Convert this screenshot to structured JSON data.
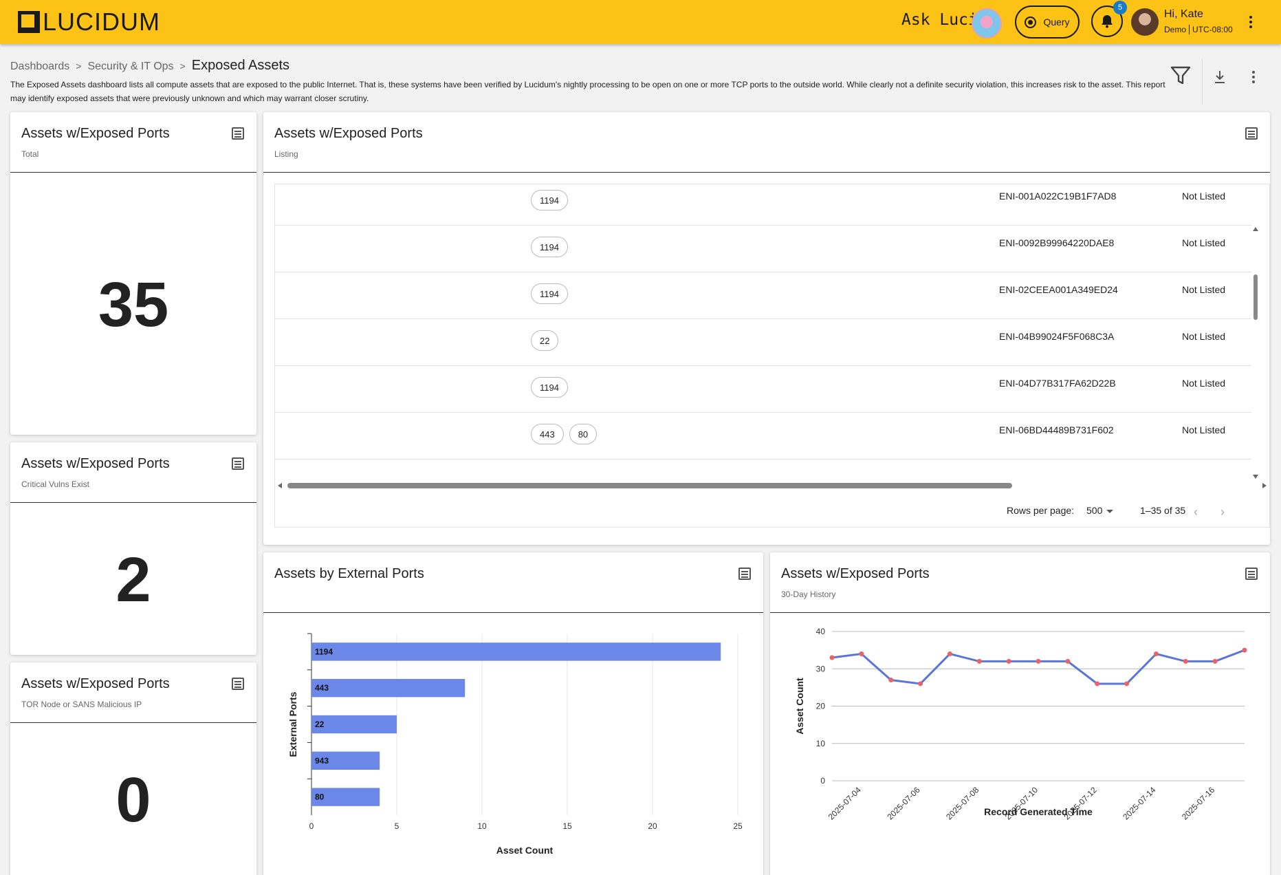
{
  "header": {
    "logo_text": "LUCIDUM",
    "ask_luci": "Ask Luci:",
    "query_label": "Query",
    "notification_count": "5",
    "user_greeting": "Hi, Kate",
    "user_org": "Demo",
    "user_tz": "UTC-08:00"
  },
  "breadcrumb": {
    "items": [
      "Dashboards",
      "Security & IT Ops"
    ],
    "separator": ">",
    "current": "Exposed Assets"
  },
  "description": "The Exposed Assets dashboard lists all compute assets that are exposed to the public Internet. That is, these systems have been verified by Lucidum's nightly processing to be open on one or more TCP ports to the outside world. While clearly not a definite security violation, this increases risk to the asset. This report may identify exposed assets that were previously unknown and which may warrant closer scrutiny.",
  "cards": {
    "total": {
      "title": "Assets w/Exposed Ports",
      "subtitle": "Total",
      "value": "35"
    },
    "critical": {
      "title": "Assets w/Exposed Ports",
      "subtitle": "Critical Vulns Exist",
      "value": "2"
    },
    "tor": {
      "title": "Assets w/Exposed Ports",
      "subtitle": "TOR Node or SANS Malicious IP",
      "value": "0"
    },
    "listing": {
      "title": "Assets w/Exposed Ports",
      "subtitle": "Listing"
    },
    "ext_ports": {
      "title": "Assets by External Ports",
      "subtitle": ""
    },
    "history": {
      "title": "Assets w/Exposed Ports",
      "subtitle": "30-Day History"
    }
  },
  "table": {
    "rows": [
      {
        "ports": [
          "1194"
        ],
        "eni": "ENI-001A022C19B1F7AD8",
        "status": "Not Listed"
      },
      {
        "ports": [
          "1194"
        ],
        "eni": "ENI-0092B99964220DAE8",
        "status": "Not Listed"
      },
      {
        "ports": [
          "1194"
        ],
        "eni": "ENI-02CEEA001A349ED24",
        "status": "Not Listed"
      },
      {
        "ports": [
          "22"
        ],
        "eni": "ENI-04B99024F5F068C3A",
        "status": "Not Listed"
      },
      {
        "ports": [
          "1194"
        ],
        "eni": "ENI-04D77B317FA62D22B",
        "status": "Not Listed"
      },
      {
        "ports": [
          "443",
          "80"
        ],
        "eni": "ENI-06BD44489B731F602",
        "status": "Not Listed"
      }
    ],
    "rows_per_page_label": "Rows per page:",
    "rows_per_page": "500",
    "range": "1–35 of 35"
  },
  "chart_data": [
    {
      "type": "bar",
      "orientation": "horizontal",
      "categories": [
        "1194",
        "443",
        "22",
        "943",
        "80"
      ],
      "values": [
        24,
        9,
        5,
        4,
        4
      ],
      "xlabel": "Asset Count",
      "ylabel": "External Ports",
      "xlim": [
        0,
        25
      ],
      "xticks": [
        "0",
        "5",
        "10",
        "15",
        "20",
        "25"
      ],
      "bar_color": "#6b88e8",
      "grid": true
    },
    {
      "type": "line",
      "x": [
        "2025-07-03",
        "2025-07-04",
        "2025-07-05",
        "2025-07-06",
        "2025-07-07",
        "2025-07-08",
        "2025-07-09",
        "2025-07-10",
        "2025-07-11",
        "2025-07-12",
        "2025-07-13",
        "2025-07-14",
        "2025-07-15",
        "2025-07-16",
        "2025-07-17"
      ],
      "values": [
        33,
        34,
        27,
        26,
        34,
        32,
        32,
        32,
        32,
        26,
        26,
        34,
        32,
        32,
        35
      ],
      "xticks": [
        "2025-07-04",
        "2025-07-06",
        "2025-07-08",
        "2025-07-10",
        "2025-07-12",
        "2025-07-14",
        "2025-07-16"
      ],
      "xlabel": "Record Generated Time",
      "ylabel": "Asset Count",
      "ylim": [
        0,
        40
      ],
      "yticks": [
        "0",
        "10",
        "20",
        "30",
        "40"
      ],
      "line_color": "#5b75d6",
      "point_color": "#e8646a",
      "grid": true
    }
  ]
}
